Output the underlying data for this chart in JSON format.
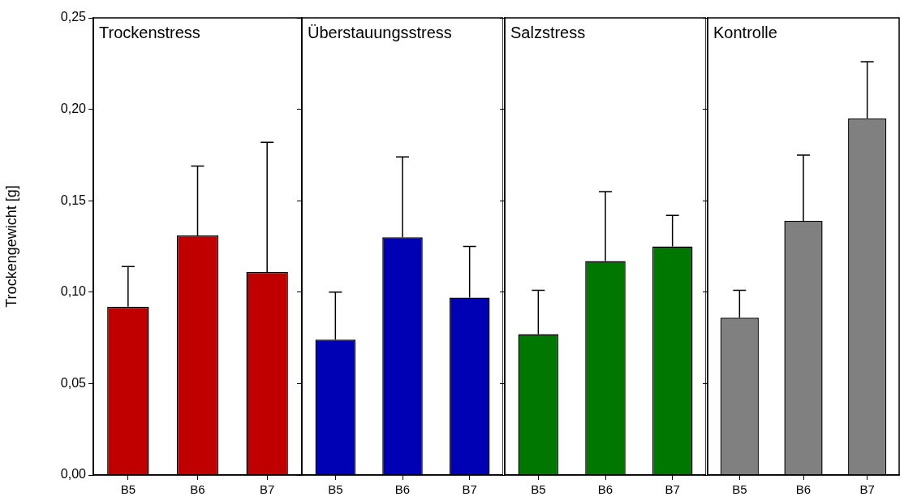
{
  "chart_data": [
    {
      "type": "bar",
      "title": "Trockenstress",
      "ylabel": "Trockengewicht [g]",
      "categories": [
        "B5",
        "B6",
        "B7"
      ],
      "values": [
        0.092,
        0.131,
        0.111
      ],
      "color": "#c00000",
      "errors": [
        [
          0.092,
          0.114
        ],
        [
          0.131,
          0.169
        ],
        [
          0.111,
          0.182
        ]
      ],
      "ylim": [
        0,
        0.25
      ],
      "yticks": [
        {
          "value": 0,
          "label": "0,00"
        },
        {
          "value": 0.05,
          "label": "0,05"
        },
        {
          "value": 0.1,
          "label": "0,10"
        },
        {
          "value": 0.15,
          "label": "0,15"
        },
        {
          "value": 0.2,
          "label": "0,20"
        },
        {
          "value": 0.25,
          "label": "0,25"
        }
      ],
      "grid": false,
      "legend": false
    },
    {
      "type": "bar",
      "title": "Überstauungsstress",
      "categories": [
        "B5",
        "B6",
        "B7"
      ],
      "values": [
        0.074,
        0.13,
        0.097
      ],
      "color": "#0000b4",
      "errors": [
        [
          0.074,
          0.1
        ],
        [
          0.13,
          0.174
        ],
        [
          0.097,
          0.125
        ]
      ],
      "ylim": [
        0,
        0.25
      ],
      "yticks": [
        {
          "value": 0,
          "label": null
        },
        {
          "value": 0.05,
          "label": null
        },
        {
          "value": 0.1,
          "label": null
        },
        {
          "value": 0.15,
          "label": null
        },
        {
          "value": 0.2,
          "label": null
        },
        {
          "value": 0.25,
          "label": null
        }
      ],
      "tick_labels": "x",
      "grid": false,
      "legend": false
    },
    {
      "type": "bar",
      "title": "Salzstress",
      "categories": [
        "B5",
        "B6",
        "B7"
      ],
      "values": [
        0.077,
        0.117,
        0.125
      ],
      "color": "#007800",
      "errors": [
        [
          0.077,
          0.101
        ],
        [
          0.117,
          0.155
        ],
        [
          0.125,
          0.142
        ]
      ],
      "ylim": [
        0,
        0.25
      ],
      "yticks": [
        {
          "value": 0,
          "label": null
        },
        {
          "value": 0.05,
          "label": null
        },
        {
          "value": 0.1,
          "label": null
        },
        {
          "value": 0.15,
          "label": null
        },
        {
          "value": 0.2,
          "label": null
        },
        {
          "value": 0.25,
          "label": null
        }
      ],
      "tick_labels": "x",
      "grid": false,
      "legend": false
    },
    {
      "type": "bar",
      "title": "Kontrolle",
      "categories": [
        "B5",
        "B6",
        "B7"
      ],
      "values": [
        0.086,
        0.139,
        0.195
      ],
      "color": "#808080",
      "errors": [
        [
          0.086,
          0.101
        ],
        [
          0.139,
          0.175
        ],
        [
          0.195,
          0.226
        ]
      ],
      "ylim": [
        0,
        0.25
      ],
      "yticks": [
        {
          "value": 0,
          "label": null
        },
        {
          "value": 0.05,
          "label": null
        },
        {
          "value": 0.1,
          "label": null
        },
        {
          "value": 0.15,
          "label": null
        },
        {
          "value": 0.2,
          "label": null
        },
        {
          "value": 0.25,
          "label": null
        }
      ],
      "tick_labels": "x",
      "grid": false,
      "legend": false
    }
  ]
}
